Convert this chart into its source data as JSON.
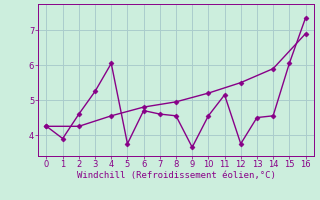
{
  "xlabel": "Windchill (Refroidissement éolien,°C)",
  "background_color": "#cceedd",
  "grid_color": "#aacccc",
  "line_color": "#880088",
  "x_series1": [
    0,
    1,
    2,
    3,
    4,
    5,
    6,
    7,
    8,
    9,
    10,
    11,
    12,
    13,
    14,
    15,
    16
  ],
  "y_series1": [
    4.25,
    3.9,
    4.6,
    5.25,
    6.05,
    3.75,
    4.7,
    4.6,
    4.55,
    3.65,
    4.55,
    5.15,
    3.75,
    4.5,
    4.55,
    6.05,
    7.35
  ],
  "x_series2": [
    0,
    2,
    4,
    6,
    8,
    10,
    12,
    14,
    16
  ],
  "y_series2": [
    4.25,
    4.25,
    4.55,
    4.8,
    4.95,
    5.2,
    5.5,
    5.9,
    6.9
  ],
  "xlim": [
    -0.5,
    16.5
  ],
  "ylim": [
    3.4,
    7.75
  ],
  "yticks": [
    4,
    5,
    6,
    7
  ],
  "xticks": [
    0,
    1,
    2,
    3,
    4,
    5,
    6,
    7,
    8,
    9,
    10,
    11,
    12,
    13,
    14,
    15,
    16
  ],
  "marker": "D",
  "markersize": 2.5,
  "linewidth": 1.0,
  "tick_fontsize": 6,
  "xlabel_fontsize": 6.5
}
